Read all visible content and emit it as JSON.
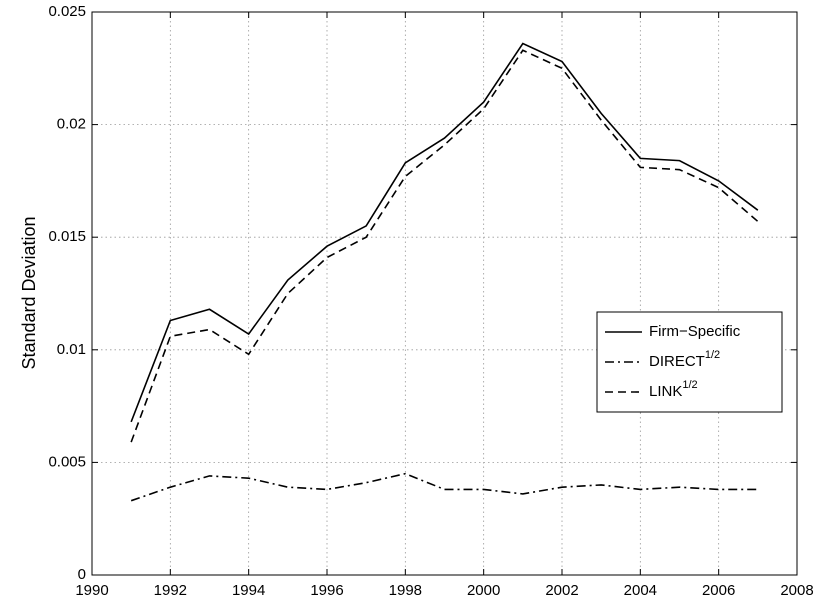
{
  "chart_data": {
    "type": "line",
    "y_label": "Standard Deviation",
    "x": [
      1991,
      1992,
      1993,
      1994,
      1995,
      1996,
      1997,
      1998,
      1999,
      2000,
      2001,
      2002,
      2003,
      2004,
      2005,
      2006,
      2007
    ],
    "series": [
      {
        "name": "Firm−Specific",
        "color": "#000000",
        "dash": "solid",
        "values": [
          0.0068,
          0.0113,
          0.0118,
          0.0107,
          0.0131,
          0.0146,
          0.0155,
          0.0183,
          0.0194,
          0.021,
          0.0236,
          0.0228,
          0.0205,
          0.0185,
          0.0184,
          0.0175,
          0.0162
        ]
      },
      {
        "name": "DIRECT",
        "name_superscript": "1/2",
        "color": "#000000",
        "dash": "dashdot",
        "values": [
          0.0033,
          0.0039,
          0.0044,
          0.0043,
          0.0039,
          0.0038,
          0.0041,
          0.0045,
          0.0038,
          0.0038,
          0.0036,
          0.0039,
          0.004,
          0.0038,
          0.0039,
          0.0038,
          0.0038
        ]
      },
      {
        "name": "LINK",
        "name_superscript": "1/2",
        "color": "#000000",
        "dash": "dashed",
        "values": [
          0.0059,
          0.0106,
          0.0109,
          0.0098,
          0.0125,
          0.0141,
          0.015,
          0.0177,
          0.0191,
          0.0207,
          0.0233,
          0.0225,
          0.0202,
          0.0181,
          0.018,
          0.0172,
          0.0157
        ]
      }
    ],
    "xlim": [
      1990,
      2008
    ],
    "xticks": [
      1990,
      1992,
      1994,
      1996,
      1998,
      2000,
      2002,
      2004,
      2006,
      2008
    ],
    "ylim": [
      0,
      0.025
    ],
    "yticks": [
      0,
      0.005,
      0.01,
      0.015,
      0.02,
      0.025
    ],
    "grid": true,
    "legend": "right"
  }
}
